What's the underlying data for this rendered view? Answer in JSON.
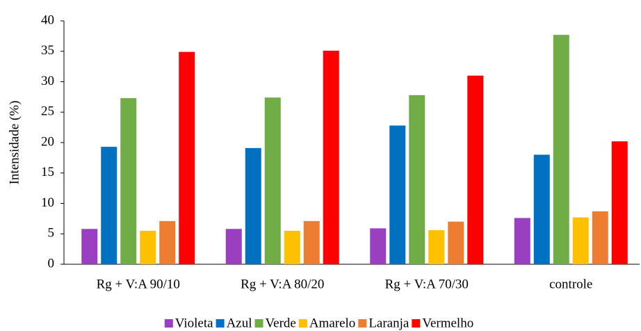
{
  "chart_data": {
    "type": "bar",
    "ylabel": "Intensidade (%)",
    "categories": [
      "Rg + V:A 90/10",
      "Rg + V:A 80/20",
      "Rg + V:A 70/30",
      "controle"
    ],
    "series": [
      {
        "name": "Violeta",
        "color": "#9a3fc0",
        "values": [
          5.8,
          5.8,
          5.9,
          7.6
        ]
      },
      {
        "name": "Azul",
        "color": "#0070c0",
        "values": [
          19.3,
          19.1,
          22.8,
          18.0
        ]
      },
      {
        "name": "Verde",
        "color": "#70ad47",
        "values": [
          27.3,
          27.4,
          27.8,
          37.7
        ]
      },
      {
        "name": "Amarelo",
        "color": "#ffc000",
        "values": [
          5.5,
          5.5,
          5.6,
          7.7
        ]
      },
      {
        "name": "Laranja",
        "color": "#ed7d31",
        "values": [
          7.1,
          7.1,
          7.0,
          8.7
        ]
      },
      {
        "name": "Vermelho",
        "color": "#ff0000",
        "values": [
          34.9,
          35.1,
          31.0,
          20.2
        ]
      }
    ],
    "ylim": [
      0,
      40
    ],
    "yticks": [
      0,
      5,
      10,
      15,
      20,
      25,
      30,
      35,
      40
    ],
    "grid": false,
    "legend": "bottom"
  }
}
